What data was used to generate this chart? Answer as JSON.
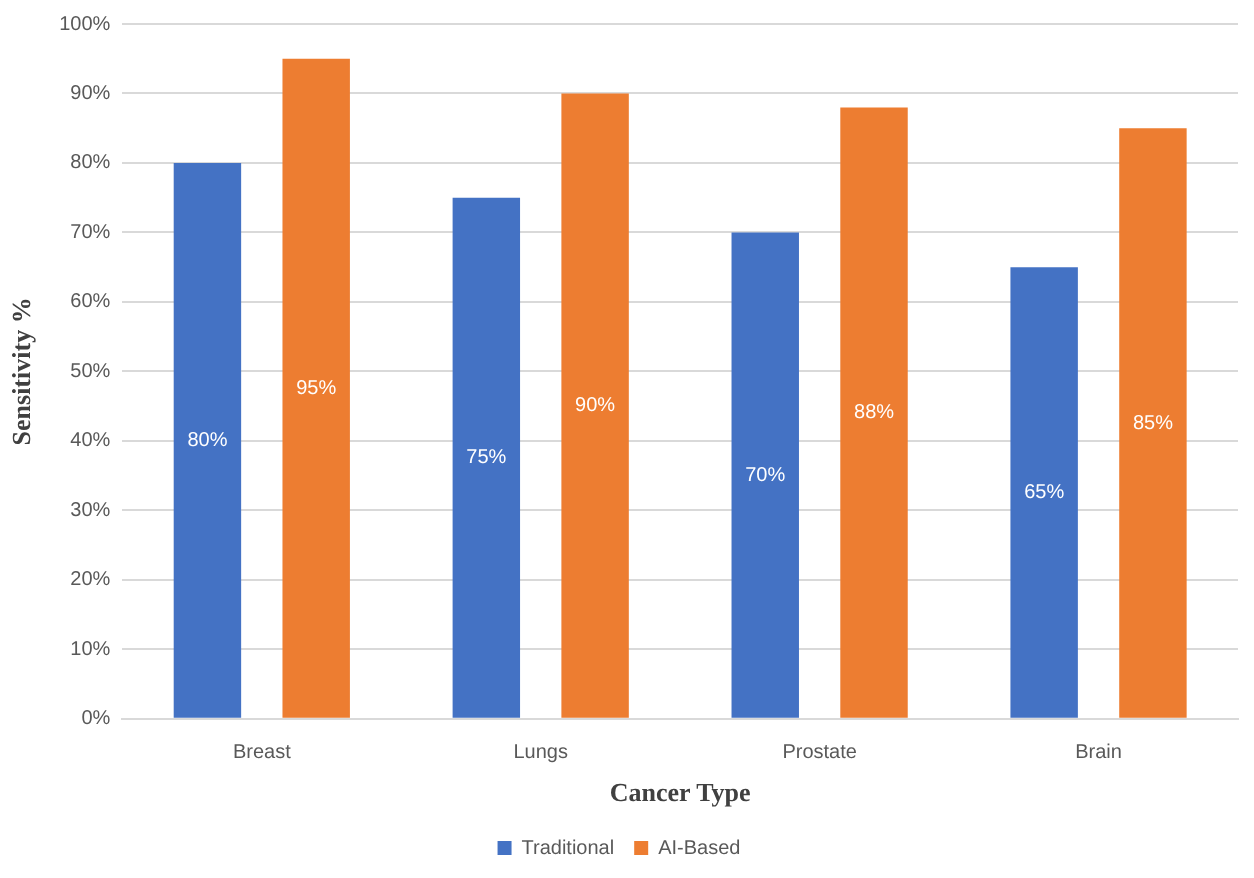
{
  "chart_data": {
    "type": "bar",
    "xlabel": "Cancer Type",
    "ylabel": "Sensitivity %",
    "categories": [
      "Breast",
      "Lungs",
      "Prostate",
      "Brain"
    ],
    "series": [
      {
        "name": "Traditional",
        "color": "#4472c4",
        "values": [
          80,
          75,
          70,
          65
        ],
        "value_labels": [
          "80%",
          "75%",
          "70%",
          "65%"
        ]
      },
      {
        "name": "AI-Based",
        "color": "#ed7d31",
        "values": [
          95,
          90,
          88,
          85
        ],
        "value_labels": [
          "95%",
          "90%",
          "88%",
          "85%"
        ]
      }
    ],
    "ylim": [
      0,
      100
    ],
    "yticks": [
      {
        "value": 0,
        "label": "0%"
      },
      {
        "value": 10,
        "label": "10%"
      },
      {
        "value": 20,
        "label": "20%"
      },
      {
        "value": 30,
        "label": "30%"
      },
      {
        "value": 40,
        "label": "40%"
      },
      {
        "value": 50,
        "label": "50%"
      },
      {
        "value": 60,
        "label": "60%"
      },
      {
        "value": 70,
        "label": "70%"
      },
      {
        "value": 80,
        "label": "80%"
      },
      {
        "value": 90,
        "label": "90%"
      },
      {
        "value": 100,
        "label": "100%"
      }
    ],
    "grid": "y",
    "legend": "bottom"
  }
}
